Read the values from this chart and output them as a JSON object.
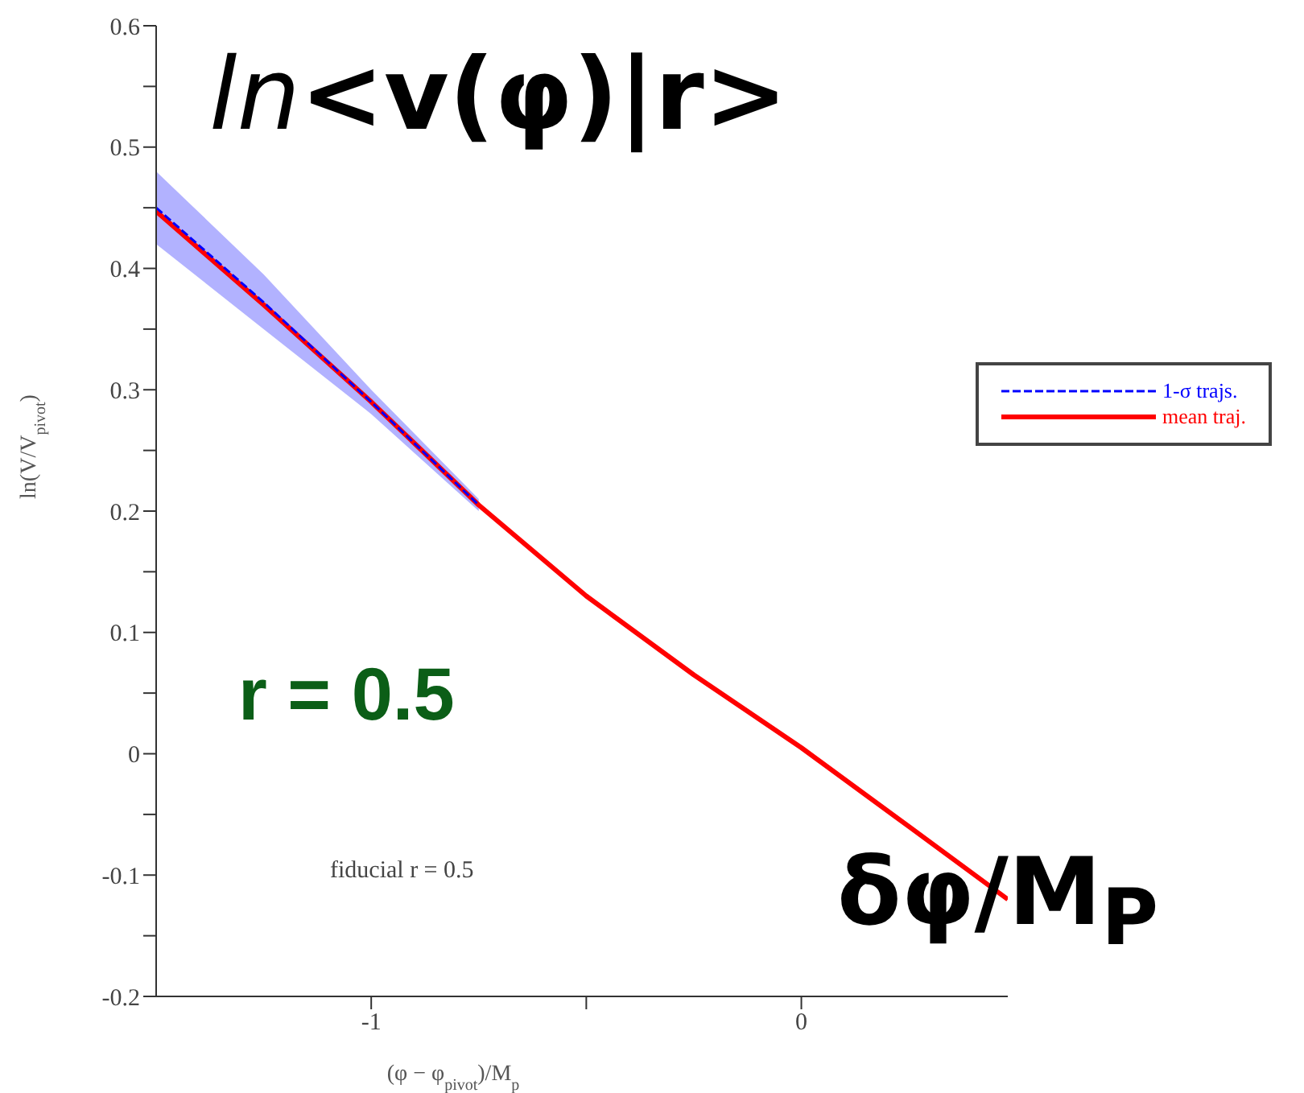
{
  "chart_data": {
    "type": "line",
    "xlabel": "(φ − φ$_{pivot}$)/M$_{p}$",
    "ylabel": "ln(V/V$_{pivot}$)",
    "xlim": [
      -1.5,
      0.48
    ],
    "xticks": [
      -1,
      {
        "value": -0.5,
        "label": null
      },
      0
    ],
    "ylim": [
      -0.2,
      0.6
    ],
    "yticks": [
      -0.2,
      {
        "value": -0.15,
        "label": null
      },
      -0.1,
      {
        "value": -0.05,
        "label": null
      },
      0,
      {
        "value": 0.05,
        "label": null
      },
      0.1,
      {
        "value": 0.15,
        "label": null
      },
      0.2,
      {
        "value": 0.25,
        "label": null
      },
      0.3,
      {
        "value": 0.35,
        "label": null
      },
      0.4,
      {
        "value": 0.45,
        "label": null
      },
      0.5,
      {
        "value": 0.55,
        "label": null
      },
      0.6
    ],
    "grid": false,
    "legend": "top right",
    "series": [
      {
        "name": "1-σ trajs.",
        "color": "#0000ff",
        "line_style": "dashed",
        "x": [
          -1.5,
          -1.25,
          -1,
          -0.75
        ],
        "values": [
          0.45,
          0.372,
          0.29,
          0.205
        ],
        "lower": [
          0.42,
          0.35,
          0.28,
          0.2
        ],
        "upper": [
          0.48,
          0.395,
          0.3,
          0.21
        ]
      },
      {
        "name": "mean traj.",
        "color": "#ff0000",
        "line_style": "solid",
        "x": [
          -1.5,
          -1.25,
          -1,
          -0.75,
          -0.5,
          -0.25,
          0,
          0.25,
          0.48
        ],
        "values": [
          0.447,
          0.37,
          0.29,
          0.205,
          0.13,
          0.065,
          0.005,
          -0.06,
          -0.12
        ]
      }
    ],
    "annotations": [
      "ln<v(φ)|r>",
      "r = 0.5",
      "δφ/M$_{P}$",
      "fiducial r = 0.5"
    ]
  }
}
